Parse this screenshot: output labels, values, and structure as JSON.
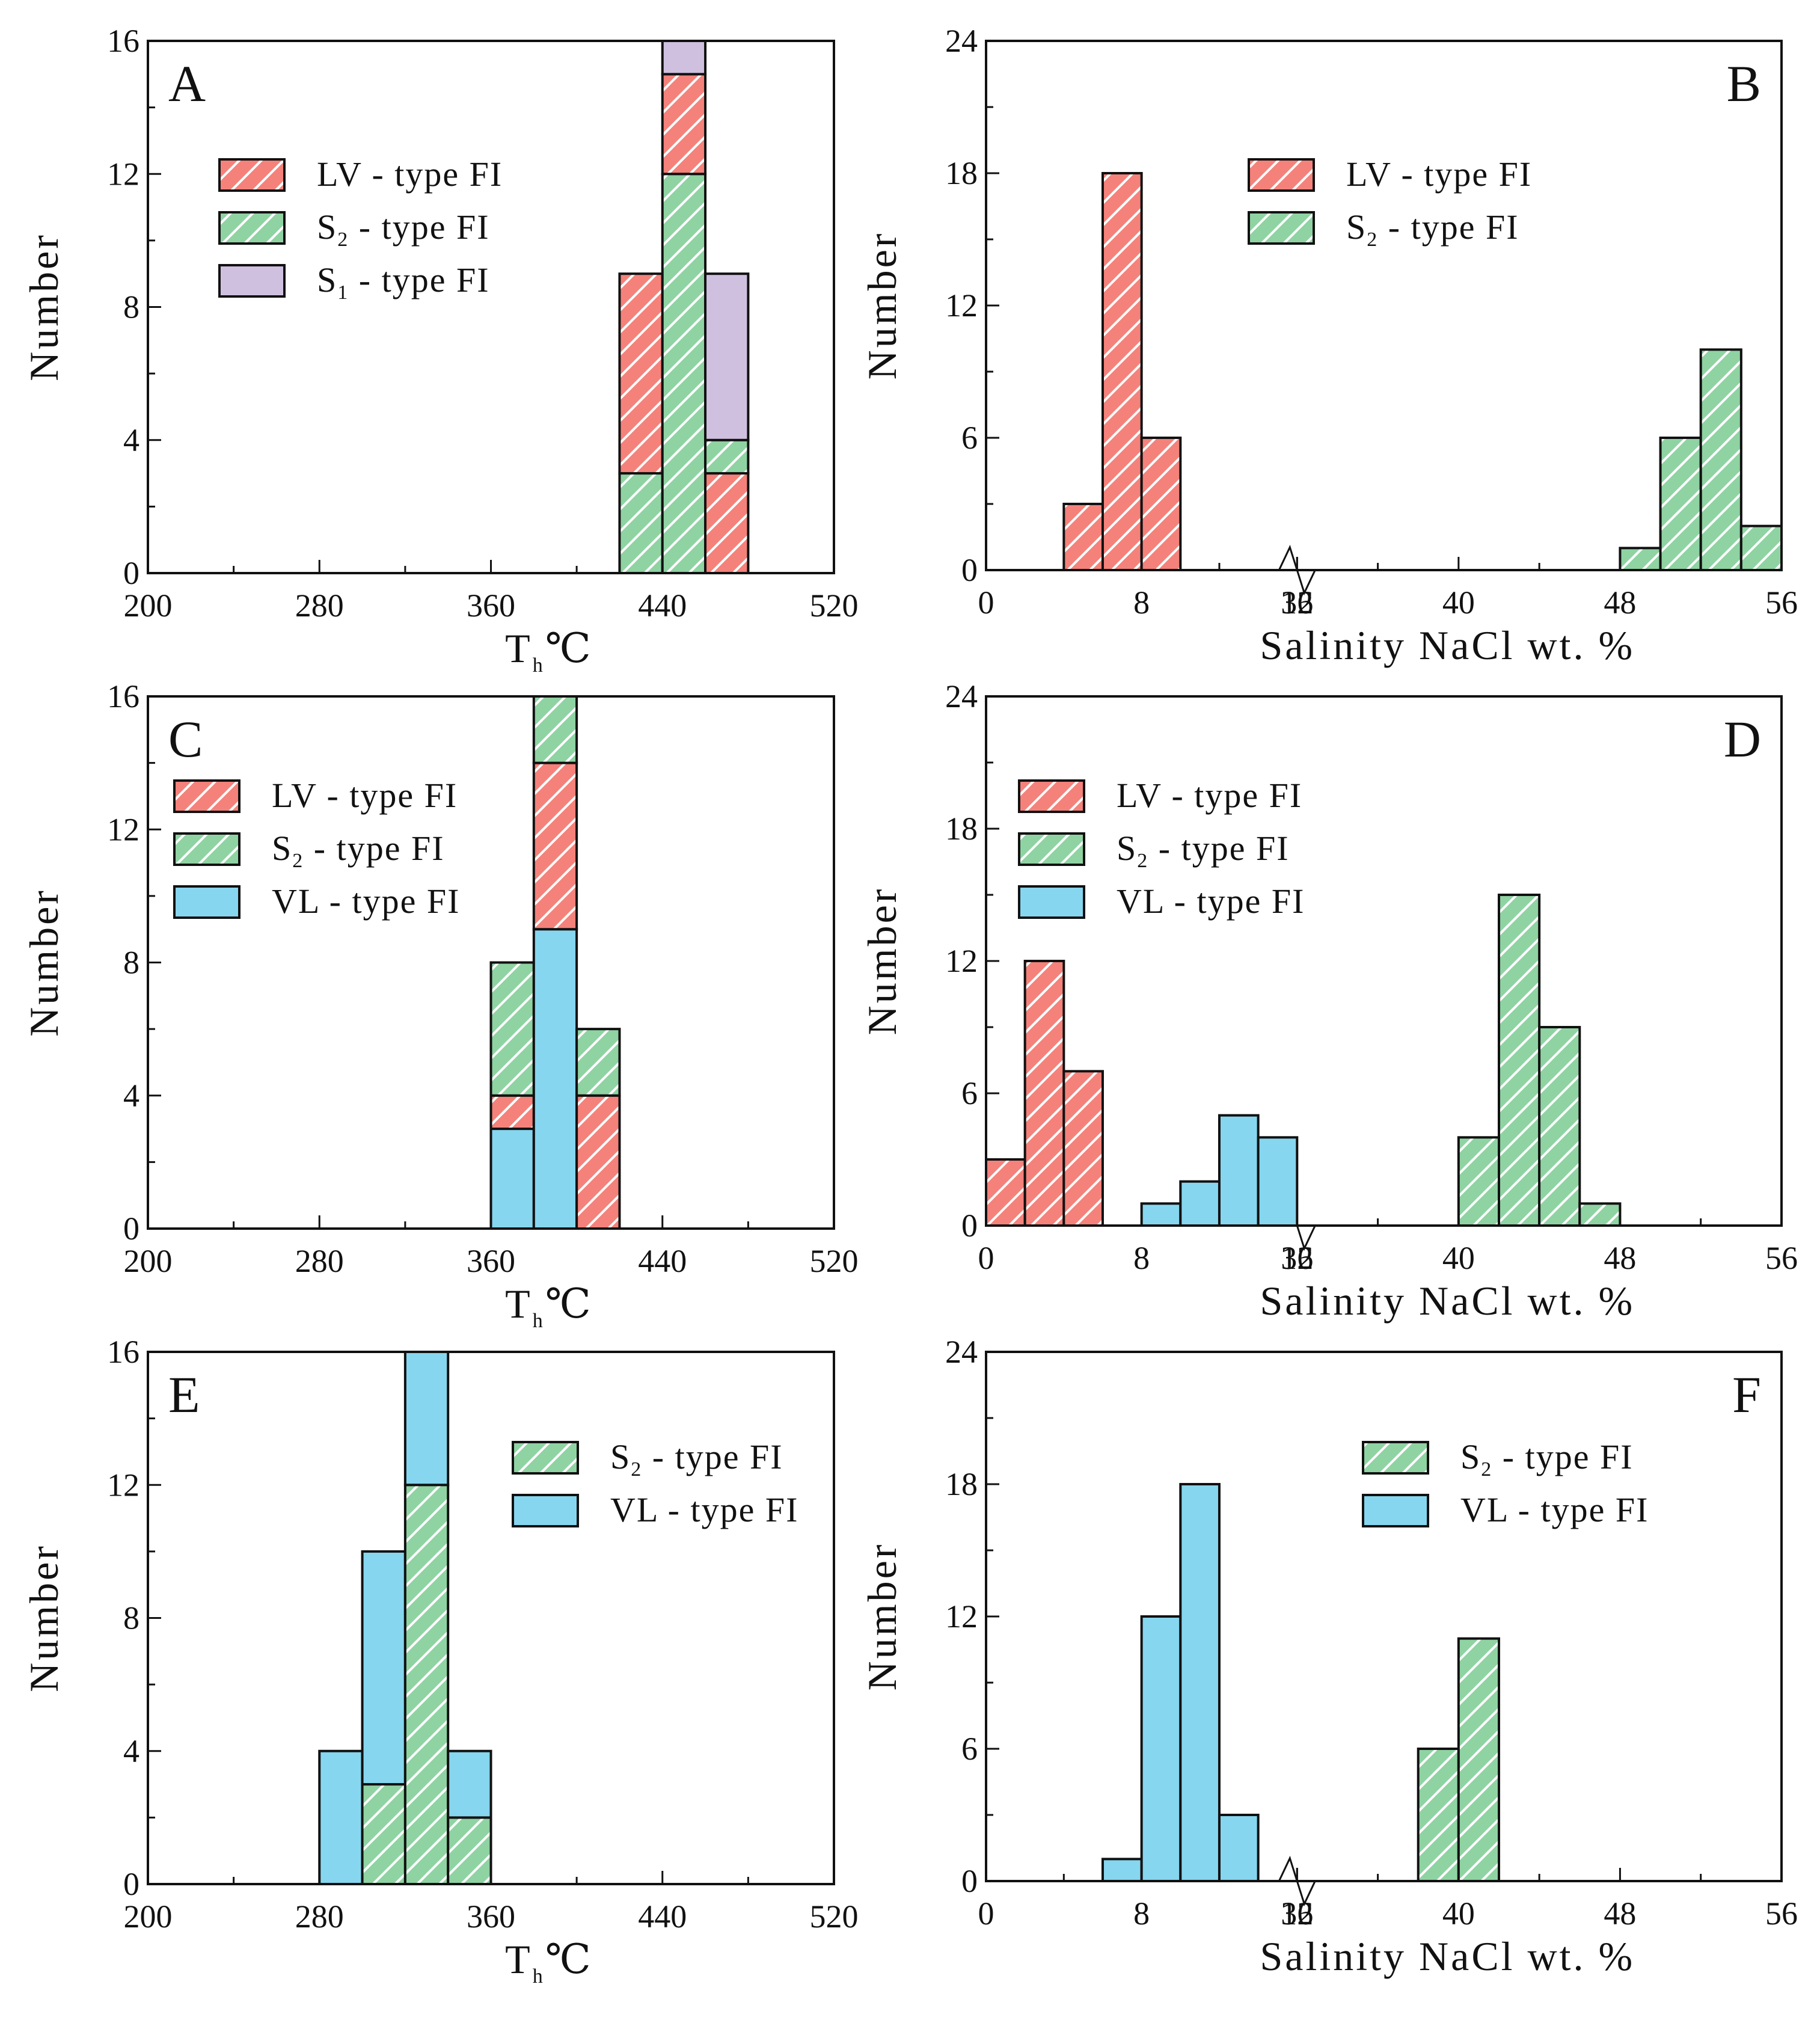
{
  "styles": {
    "LV": {
      "fill": "#f4827b",
      "hatch": true
    },
    "S2": {
      "fill": "#8fd3a3",
      "hatch": true
    },
    "S1": {
      "fill": "#cfc0e0",
      "hatch": false
    },
    "VL": {
      "fill": "#86d6ef",
      "hatch": false
    }
  },
  "y_axis_label": "Number",
  "th_label_main": "T",
  "th_label_sub": "h",
  "th_label_unit": "℃",
  "salinity_label": "Salinity  NaCl   wt. %",
  "chart_data": [
    {
      "id": "A",
      "type": "bar",
      "stacked": true,
      "letter": "A",
      "xlim": [
        200,
        520
      ],
      "xticks": [
        "200",
        "280",
        "360",
        "440",
        "520"
      ],
      "ylim": [
        0,
        16
      ],
      "yticks": [
        "0",
        "4",
        "8",
        "12",
        "16"
      ],
      "xlabel": "T h ℃",
      "ylabel": "Number",
      "bin_width": 20,
      "bins": [
        {
          "x": 420,
          "stack": [
            {
              "s": "S2",
              "v": 3
            },
            {
              "s": "LV",
              "v": 6
            }
          ]
        },
        {
          "x": 440,
          "stack": [
            {
              "s": "S2",
              "v": 12
            },
            {
              "s": "LV",
              "v": 3
            },
            {
              "s": "S1",
              "v": 1
            }
          ]
        },
        {
          "x": 460,
          "stack": [
            {
              "s": "LV",
              "v": 3
            },
            {
              "s": "S2",
              "v": 1
            },
            {
              "s": "S1",
              "v": 5
            }
          ]
        }
      ],
      "legend": [
        {
          "s": "LV",
          "main": "LV - type FI",
          "sub": "",
          "rest": ""
        },
        {
          "s": "S2",
          "main": "S",
          "sub": "2",
          "rest": " - type FI"
        },
        {
          "s": "S1",
          "main": "S",
          "sub": "1",
          "rest": " - type FI"
        }
      ]
    },
    {
      "id": "B",
      "type": "bar",
      "stacked": true,
      "letter": "B",
      "broken_axis": true,
      "xticks": [
        "0",
        "8",
        "16",
        "32",
        "40",
        "48",
        "56"
      ],
      "ylim": [
        0,
        24
      ],
      "yticks": [
        "0",
        "6",
        "12",
        "18",
        "24"
      ],
      "xlabel": "Salinity NaCl wt. %",
      "ylabel": "Number",
      "bins": [
        {
          "x0": 4,
          "x1": 6,
          "stack": [
            {
              "s": "LV",
              "v": 3
            }
          ]
        },
        {
          "x0": 6,
          "x1": 8,
          "stack": [
            {
              "s": "LV",
              "v": 18
            }
          ]
        },
        {
          "x0": 8,
          "x1": 10,
          "stack": [
            {
              "s": "LV",
              "v": 6
            }
          ]
        },
        {
          "x0": 48,
          "x1": 50,
          "stack": [
            {
              "s": "S2",
              "v": 1
            }
          ]
        },
        {
          "x0": 50,
          "x1": 52,
          "stack": [
            {
              "s": "S2",
              "v": 6
            }
          ]
        },
        {
          "x0": 52,
          "x1": 54,
          "stack": [
            {
              "s": "S2",
              "v": 10
            }
          ]
        },
        {
          "x0": 54,
          "x1": 56,
          "stack": [
            {
              "s": "S2",
              "v": 2
            }
          ]
        }
      ],
      "legend": [
        {
          "s": "LV",
          "main": "LV - type FI",
          "sub": "",
          "rest": ""
        },
        {
          "s": "S2",
          "main": "S",
          "sub": "2",
          "rest": " - type FI"
        }
      ]
    },
    {
      "id": "C",
      "type": "bar",
      "stacked": true,
      "letter": "C",
      "xlim": [
        200,
        520
      ],
      "xticks": [
        "200",
        "280",
        "360",
        "440",
        "520"
      ],
      "ylim": [
        0,
        16
      ],
      "yticks": [
        "0",
        "4",
        "8",
        "12",
        "16"
      ],
      "xlabel": "T h ℃",
      "ylabel": "Number",
      "bin_width": 20,
      "bins": [
        {
          "x": 360,
          "stack": [
            {
              "s": "VL",
              "v": 3
            },
            {
              "s": "LV",
              "v": 1
            },
            {
              "s": "S2",
              "v": 4
            }
          ]
        },
        {
          "x": 380,
          "stack": [
            {
              "s": "VL",
              "v": 9
            },
            {
              "s": "LV",
              "v": 5
            },
            {
              "s": "S2",
              "v": 2
            }
          ]
        },
        {
          "x": 400,
          "stack": [
            {
              "s": "LV",
              "v": 4
            },
            {
              "s": "S2",
              "v": 2
            }
          ]
        }
      ],
      "legend": [
        {
          "s": "LV",
          "main": "LV - type FI",
          "sub": "",
          "rest": ""
        },
        {
          "s": "S2",
          "main": "S",
          "sub": "2",
          "rest": " - type FI"
        },
        {
          "s": "VL",
          "main": "VL - type  FI",
          "sub": "",
          "rest": ""
        }
      ]
    },
    {
      "id": "D",
      "type": "bar",
      "stacked": true,
      "letter": "D",
      "broken_axis": true,
      "xticks": [
        "0",
        "8",
        "16",
        "32",
        "40",
        "48",
        "56"
      ],
      "ylim": [
        0,
        24
      ],
      "yticks": [
        "0",
        "6",
        "12",
        "18",
        "24"
      ],
      "xlabel": "Salinity NaCl wt. %",
      "ylabel": "Number",
      "bins": [
        {
          "x0": 0,
          "x1": 2,
          "stack": [
            {
              "s": "LV",
              "v": 3
            }
          ]
        },
        {
          "x0": 2,
          "x1": 4,
          "stack": [
            {
              "s": "LV",
              "v": 12
            }
          ]
        },
        {
          "x0": 4,
          "x1": 6,
          "stack": [
            {
              "s": "LV",
              "v": 7
            }
          ]
        },
        {
          "x0": 8,
          "x1": 10,
          "stack": [
            {
              "s": "VL",
              "v": 1
            }
          ]
        },
        {
          "x0": 10,
          "x1": 12,
          "stack": [
            {
              "s": "VL",
              "v": 2
            }
          ]
        },
        {
          "x0": 12,
          "x1": 14,
          "stack": [
            {
              "s": "VL",
              "v": 5
            }
          ]
        },
        {
          "x0": 14,
          "x1": 16,
          "stack": [
            {
              "s": "VL",
              "v": 4
            }
          ]
        },
        {
          "x0": 40,
          "x1": 42,
          "stack": [
            {
              "s": "S2",
              "v": 4
            }
          ]
        },
        {
          "x0": 42,
          "x1": 44,
          "stack": [
            {
              "s": "S2",
              "v": 15
            }
          ]
        },
        {
          "x0": 44,
          "x1": 46,
          "stack": [
            {
              "s": "S2",
              "v": 9
            }
          ]
        },
        {
          "x0": 46,
          "x1": 48,
          "stack": [
            {
              "s": "S2",
              "v": 1
            }
          ]
        }
      ],
      "legend": [
        {
          "s": "LV",
          "main": "LV - type FI",
          "sub": "",
          "rest": ""
        },
        {
          "s": "S2",
          "main": "S",
          "sub": "2",
          "rest": " - type FI"
        },
        {
          "s": "VL",
          "main": "VL - type  FI",
          "sub": "",
          "rest": ""
        }
      ]
    },
    {
      "id": "E",
      "type": "bar",
      "stacked": true,
      "letter": "E",
      "xlim": [
        200,
        520
      ],
      "xticks": [
        "200",
        "280",
        "360",
        "440",
        "520"
      ],
      "ylim": [
        0,
        16
      ],
      "yticks": [
        "0",
        "4",
        "8",
        "12",
        "16"
      ],
      "xlabel": "T h ℃",
      "ylabel": "Number",
      "bin_width": 20,
      "bins": [
        {
          "x": 280,
          "stack": [
            {
              "s": "VL",
              "v": 4
            }
          ]
        },
        {
          "x": 300,
          "stack": [
            {
              "s": "S2",
              "v": 3
            },
            {
              "s": "VL",
              "v": 7
            }
          ]
        },
        {
          "x": 320,
          "stack": [
            {
              "s": "S2",
              "v": 12
            },
            {
              "s": "VL",
              "v": 4
            }
          ]
        },
        {
          "x": 340,
          "stack": [
            {
              "s": "S2",
              "v": 2
            },
            {
              "s": "VL",
              "v": 2
            }
          ]
        }
      ],
      "legend": [
        {
          "s": "S2",
          "main": "S",
          "sub": "2",
          "rest": " - type FI"
        },
        {
          "s": "VL",
          "main": "VL - type  FI",
          "sub": "",
          "rest": ""
        }
      ]
    },
    {
      "id": "F",
      "type": "bar",
      "stacked": true,
      "letter": "F",
      "broken_axis": true,
      "xticks": [
        "0",
        "8",
        "16",
        "32",
        "40",
        "48",
        "56"
      ],
      "ylim": [
        0,
        24
      ],
      "yticks": [
        "0",
        "6",
        "12",
        "18",
        "24"
      ],
      "xlabel": "Salinity NaCl wt. %",
      "ylabel": "Number",
      "bins": [
        {
          "x0": 6,
          "x1": 8,
          "stack": [
            {
              "s": "VL",
              "v": 1
            }
          ]
        },
        {
          "x0": 8,
          "x1": 10,
          "stack": [
            {
              "s": "VL",
              "v": 12
            }
          ]
        },
        {
          "x0": 10,
          "x1": 12,
          "stack": [
            {
              "s": "VL",
              "v": 18
            }
          ]
        },
        {
          "x0": 12,
          "x1": 14,
          "stack": [
            {
              "s": "VL",
              "v": 3
            }
          ]
        },
        {
          "x0": 38,
          "x1": 40,
          "stack": [
            {
              "s": "S2",
              "v": 6
            }
          ]
        },
        {
          "x0": 40,
          "x1": 42,
          "stack": [
            {
              "s": "S2",
              "v": 11
            }
          ]
        }
      ],
      "legend": [
        {
          "s": "S2",
          "main": "S",
          "sub": "2",
          "rest": " - type FI"
        },
        {
          "s": "VL",
          "main": "VL - type  FI",
          "sub": "",
          "rest": ""
        }
      ]
    }
  ]
}
